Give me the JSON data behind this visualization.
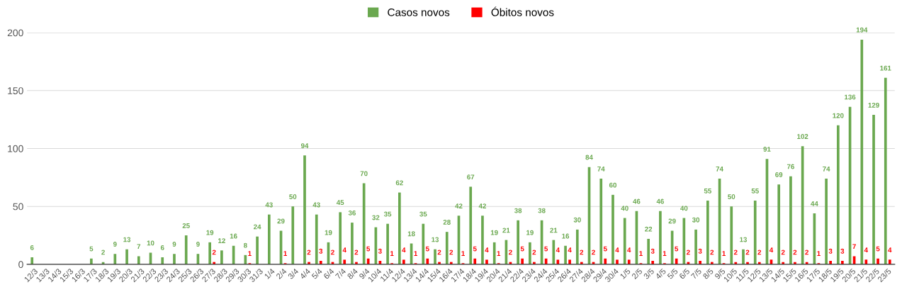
{
  "chart_data": {
    "type": "bar",
    "categories": [
      "12/3",
      "13/3",
      "14/3",
      "15/3",
      "16/3",
      "17/3",
      "18/3",
      "19/3",
      "20/3",
      "21/3",
      "22/3",
      "23/3",
      "24/3",
      "25/3",
      "26/3",
      "27/3",
      "28/3",
      "29/3",
      "30/3",
      "31/3",
      "1/4",
      "2/4",
      "3/4",
      "4/4",
      "5/4",
      "6/4",
      "7/4",
      "8/4",
      "9/4",
      "10/4",
      "11/4",
      "12/4",
      "13/4",
      "14/4",
      "15/4",
      "16/4",
      "17/4",
      "18/4",
      "19/4",
      "20/4",
      "21/4",
      "22/4",
      "23/4",
      "24/4",
      "25/4",
      "26/4",
      "27/4",
      "28/4",
      "29/4",
      "30/4",
      "1/5",
      "2/5",
      "3/5",
      "4/5",
      "5/5",
      "6/5",
      "7/5",
      "8/5",
      "9/5",
      "10/5",
      "11/5",
      "12/5",
      "13/5",
      "14/5",
      "15/5",
      "16/5",
      "17/5",
      "18/5",
      "19/5",
      "20/5",
      "21/5",
      "22/5",
      "23/5"
    ],
    "series": [
      {
        "name": "Casos novos",
        "color": "#6aa84f",
        "values": [
          6,
          null,
          null,
          null,
          null,
          5,
          2,
          9,
          13,
          7,
          10,
          6,
          9,
          25,
          9,
          19,
          12,
          16,
          8,
          24,
          43,
          29,
          50,
          94,
          43,
          19,
          45,
          36,
          70,
          32,
          35,
          62,
          18,
          35,
          13,
          28,
          42,
          67,
          42,
          19,
          21,
          38,
          19,
          38,
          21,
          16,
          30,
          84,
          74,
          60,
          40,
          46,
          22,
          46,
          29,
          40,
          30,
          55,
          74,
          50,
          13,
          55,
          91,
          69,
          76,
          102,
          44,
          74,
          120,
          136,
          194,
          129,
          161
        ]
      },
      {
        "name": "Óbitos novos",
        "color": "#ff0000",
        "values": [
          null,
          null,
          null,
          null,
          null,
          null,
          null,
          null,
          null,
          null,
          null,
          null,
          null,
          null,
          null,
          2,
          null,
          null,
          1,
          null,
          null,
          1,
          null,
          2,
          3,
          2,
          4,
          2,
          5,
          3,
          1,
          4,
          1,
          5,
          2,
          2,
          1,
          5,
          4,
          1,
          2,
          5,
          2,
          5,
          4,
          4,
          2,
          2,
          5,
          4,
          4,
          1,
          3,
          1,
          5,
          2,
          3,
          2,
          1,
          2,
          2,
          2,
          4,
          2,
          2,
          2,
          1,
          3,
          3,
          7,
          4,
          5,
          4
        ]
      }
    ],
    "ylim": [
      0,
      200
    ],
    "yticks": [
      0,
      50,
      100,
      150,
      200
    ],
    "grid": "y",
    "legend": "top",
    "data_labels": true
  }
}
